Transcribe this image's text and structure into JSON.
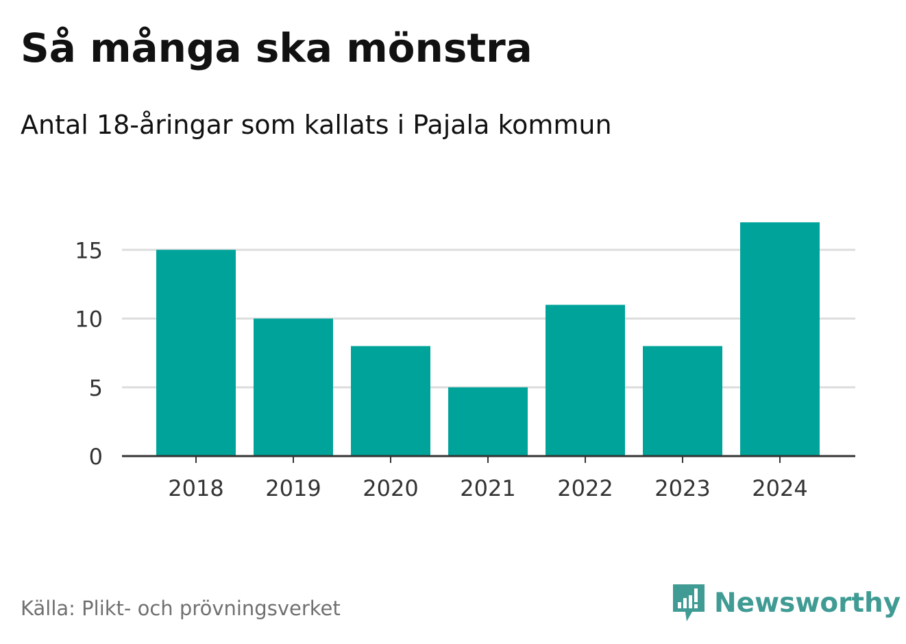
{
  "header": {
    "title": "Så många ska mönstra",
    "subtitle": "Antal 18-åringar som kallats i Pajala kommun"
  },
  "footer": {
    "source": "Källa: Plikt- och prövningsverket",
    "brand": "Newsworthy",
    "brand_icon": "newsworthy-logo-icon",
    "brand_color": "#3f9b93"
  },
  "chart_data": {
    "type": "bar",
    "categories": [
      "2018",
      "2019",
      "2020",
      "2021",
      "2022",
      "2023",
      "2024"
    ],
    "values": [
      15,
      10,
      8,
      5,
      11,
      8,
      17
    ],
    "ylim": [
      0,
      17
    ],
    "yticks": [
      "0",
      "5",
      "10",
      "15"
    ],
    "xlabel": "",
    "ylabel": "",
    "grid": true,
    "bar_color": "#00a39a",
    "grid_color": "#dddddd",
    "axis_color": "#333333"
  }
}
